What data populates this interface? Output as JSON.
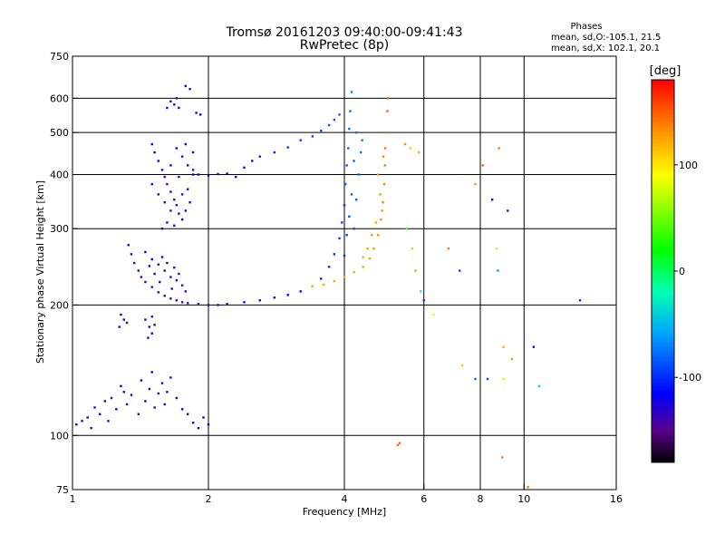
{
  "chart_data": {
    "type": "scatter",
    "title": "Tromsø 20161203 09:40:00-09:41:43",
    "subtitle": "RwPretec (8p)",
    "info": {
      "heading": "Phases",
      "line_o": "mean, sd,O:-105.1, 21.5",
      "line_x": "mean, sd,X: 102.1, 20.1"
    },
    "xlabel": "Frequency [MHz]",
    "ylabel": "Stationary phase Virtual Height [km]",
    "x_scale": "log",
    "y_scale": "log",
    "xlim": [
      1,
      16
    ],
    "ylim": [
      75,
      750
    ],
    "x_ticks": [
      {
        "value": 1,
        "label": "1"
      },
      {
        "value": 2,
        "label": "2"
      },
      {
        "value": 4,
        "label": "4"
      },
      {
        "value": 6,
        "label": "6"
      },
      {
        "value": 8,
        "label": "8"
      },
      {
        "value": 10,
        "label": "10"
      },
      {
        "value": 16,
        "label": "16"
      }
    ],
    "y_ticks": [
      {
        "value": 75,
        "label": "75"
      },
      {
        "value": 100,
        "label": "100"
      },
      {
        "value": 200,
        "label": "200"
      },
      {
        "value": 300,
        "label": "300"
      },
      {
        "value": 400,
        "label": "400"
      },
      {
        "value": 500,
        "label": "500"
      },
      {
        "value": 600,
        "label": "600"
      },
      {
        "value": 750,
        "label": "750"
      }
    ],
    "grid": true,
    "grid_x": [
      2,
      4,
      6,
      8,
      10
    ],
    "grid_y": [
      100,
      200,
      300,
      400,
      500,
      600
    ],
    "colorbar": {
      "label": "[deg]",
      "range": [
        -180,
        180
      ],
      "ticks": [
        {
          "value": 100,
          "label": "100"
        },
        {
          "value": 0,
          "label": "0"
        },
        {
          "value": -100,
          "label": "-100"
        }
      ],
      "stops": [
        {
          "value": -180,
          "color": "#000000"
        },
        {
          "value": -150,
          "color": "#5a008c"
        },
        {
          "value": -115,
          "color": "#0000ff"
        },
        {
          "value": -60,
          "color": "#00a0ff"
        },
        {
          "value": -20,
          "color": "#00ffb4"
        },
        {
          "value": 20,
          "color": "#00ff00"
        },
        {
          "value": 90,
          "color": "#ffff00"
        },
        {
          "value": 130,
          "color": "#ff9600"
        },
        {
          "value": 180,
          "color": "#ff0000"
        }
      ]
    },
    "series": [
      {
        "points": [
          [
            1.02,
            106
          ],
          [
            1.05,
            108
          ],
          [
            1.08,
            110
          ],
          [
            1.1,
            104
          ],
          [
            1.12,
            116
          ],
          [
            1.15,
            112
          ],
          [
            1.18,
            120
          ],
          [
            1.2,
            108
          ],
          [
            1.22,
            122
          ],
          [
            1.25,
            115
          ],
          [
            1.28,
            130
          ],
          [
            1.3,
            126
          ],
          [
            1.32,
            118
          ],
          [
            1.35,
            124
          ],
          [
            1.4,
            112
          ],
          [
            1.42,
            134
          ],
          [
            1.45,
            120
          ],
          [
            1.48,
            128
          ],
          [
            1.5,
            140
          ],
          [
            1.52,
            116
          ],
          [
            1.55,
            125
          ],
          [
            1.58,
            132
          ],
          [
            1.6,
            118
          ],
          [
            1.62,
            126
          ],
          [
            1.65,
            136
          ],
          [
            1.7,
            122
          ],
          [
            1.75,
            115
          ],
          [
            1.8,
            112
          ],
          [
            1.85,
            107
          ],
          [
            1.9,
            104
          ],
          [
            1.95,
            110
          ],
          [
            2.0,
            106
          ]
        ],
        "phases": [
          -120,
          -125,
          -130,
          -140,
          -110,
          -125,
          -130,
          -135,
          -145,
          -115,
          -120,
          -128,
          -140,
          -135,
          -150,
          -125,
          -118,
          -132,
          -126,
          -138,
          -142,
          -120,
          -128,
          -134,
          -116,
          -130,
          -124,
          -138,
          -122,
          -126,
          -132,
          -120
        ]
      },
      {
        "points": [
          [
            1.28,
            190
          ],
          [
            1.3,
            185
          ],
          [
            1.27,
            178
          ],
          [
            1.32,
            182
          ],
          [
            1.45,
            185
          ],
          [
            1.48,
            178
          ],
          [
            1.5,
            172
          ],
          [
            1.47,
            168
          ],
          [
            1.52,
            180
          ],
          [
            1.5,
            188
          ]
        ],
        "phases": [
          -130,
          -125,
          -135,
          -140,
          -130,
          -138,
          -125,
          -132,
          -128,
          -136
        ]
      },
      {
        "points": [
          [
            1.33,
            275
          ],
          [
            1.35,
            262
          ],
          [
            1.37,
            250
          ],
          [
            1.4,
            240
          ],
          [
            1.42,
            232
          ],
          [
            1.45,
            226
          ],
          [
            1.5,
            220
          ],
          [
            1.55,
            214
          ],
          [
            1.6,
            210
          ],
          [
            1.65,
            207
          ],
          [
            1.7,
            205
          ],
          [
            1.75,
            203
          ],
          [
            1.8,
            202
          ],
          [
            1.9,
            201
          ],
          [
            2.0,
            200
          ],
          [
            2.1,
            200
          ],
          [
            2.2,
            201
          ],
          [
            2.4,
            203
          ],
          [
            2.6,
            205
          ],
          [
            2.8,
            208
          ],
          [
            3.0,
            211
          ],
          [
            3.2,
            215
          ],
          [
            3.4,
            221
          ],
          [
            3.55,
            230
          ],
          [
            3.7,
            245
          ],
          [
            3.8,
            262
          ],
          [
            3.9,
            285
          ],
          [
            3.95,
            310
          ],
          [
            4.0,
            340
          ]
        ],
        "phases": [
          -128,
          -130,
          -132,
          -135,
          -138,
          -140,
          -142,
          -145,
          -146,
          -147,
          -148,
          -150,
          -148,
          -145,
          -142,
          -138,
          -135,
          -130,
          -126,
          -122,
          -118,
          -112,
          -108,
          -104,
          -100,
          -98,
          -95,
          -92,
          -88
        ]
      },
      {
        "points": [
          [
            1.45,
            265
          ],
          [
            1.5,
            255
          ],
          [
            1.55,
            248
          ],
          [
            1.6,
            240
          ],
          [
            1.65,
            232
          ],
          [
            1.7,
            228
          ],
          [
            1.75,
            222
          ],
          [
            1.58,
            258
          ],
          [
            1.62,
            250
          ],
          [
            1.68,
            244
          ],
          [
            1.72,
            236
          ],
          [
            1.52,
            236
          ],
          [
            1.48,
            246
          ],
          [
            1.56,
            226
          ],
          [
            1.66,
            218
          ],
          [
            1.78,
            215
          ]
        ],
        "phases": [
          -120,
          -125,
          -130,
          -128,
          -135,
          -138,
          -132,
          -126,
          -130,
          -134,
          -140,
          -124,
          -128,
          -136,
          -138,
          -132
        ]
      },
      {
        "points": [
          [
            1.5,
            470
          ],
          [
            1.52,
            450
          ],
          [
            1.55,
            430
          ],
          [
            1.58,
            410
          ],
          [
            1.6,
            395
          ],
          [
            1.62,
            380
          ],
          [
            1.65,
            365
          ],
          [
            1.68,
            350
          ],
          [
            1.7,
            340
          ],
          [
            1.72,
            325
          ],
          [
            1.75,
            315
          ],
          [
            1.78,
            330
          ],
          [
            1.5,
            380
          ],
          [
            1.55,
            360
          ],
          [
            1.6,
            345
          ],
          [
            1.65,
            330
          ],
          [
            1.7,
            460
          ],
          [
            1.75,
            440
          ],
          [
            1.8,
            420
          ],
          [
            1.85,
            400
          ],
          [
            1.75,
            360
          ],
          [
            1.82,
            345
          ],
          [
            1.62,
            310
          ],
          [
            1.68,
            305
          ],
          [
            1.58,
            300
          ],
          [
            1.8,
            370
          ],
          [
            1.72,
            395
          ],
          [
            1.65,
            420
          ],
          [
            1.78,
            470
          ],
          [
            1.85,
            450
          ]
        ],
        "phases": [
          -125,
          -130,
          -135,
          -128,
          -132,
          -138,
          -140,
          -142,
          -136,
          -130,
          -126,
          -134,
          -128,
          -132,
          -136,
          -140,
          -124,
          -128,
          -132,
          -126,
          -138,
          -130,
          -142,
          -136,
          -140,
          -128,
          -134,
          -130,
          -126,
          -132
        ]
      },
      {
        "points": [
          [
            1.62,
            570
          ],
          [
            1.65,
            590
          ],
          [
            1.68,
            580
          ],
          [
            1.7,
            600
          ],
          [
            1.72,
            570
          ],
          [
            1.78,
            640
          ],
          [
            1.82,
            630
          ],
          [
            1.88,
            555
          ],
          [
            1.92,
            550
          ]
        ],
        "phases": [
          -128,
          -132,
          -136,
          -130,
          -126,
          -134,
          -138,
          -122,
          -118
        ]
      },
      {
        "points": [
          [
            1.85,
            410
          ],
          [
            1.9,
            400
          ],
          [
            2.0,
            398
          ],
          [
            2.1,
            401
          ],
          [
            2.2,
            402
          ],
          [
            2.3,
            395
          ],
          [
            2.4,
            415
          ],
          [
            2.5,
            430
          ],
          [
            2.6,
            440
          ],
          [
            2.8,
            450
          ],
          [
            3.0,
            462
          ],
          [
            3.2,
            480
          ],
          [
            3.4,
            490
          ],
          [
            3.55,
            505
          ],
          [
            3.7,
            520
          ],
          [
            3.8,
            535
          ],
          [
            3.9,
            550
          ]
        ],
        "phases": [
          -130,
          -126,
          -122,
          -120,
          -118,
          -115,
          -112,
          -110,
          -108,
          -105,
          -100,
          -95,
          -92,
          -90,
          -88,
          -85,
          -80
        ]
      },
      {
        "points": [
          [
            4.0,
            340
          ],
          [
            4.02,
            380
          ],
          [
            4.05,
            420
          ],
          [
            4.08,
            460
          ],
          [
            4.1,
            510
          ],
          [
            4.12,
            560
          ],
          [
            4.15,
            620
          ],
          [
            4.2,
            300
          ],
          [
            4.25,
            350
          ],
          [
            4.3,
            400
          ],
          [
            4.35,
            450
          ],
          [
            4.38,
            480
          ],
          [
            4.0,
            260
          ],
          [
            4.05,
            290
          ],
          [
            4.1,
            320
          ],
          [
            4.15,
            360
          ],
          [
            4.2,
            430
          ],
          [
            4.25,
            500
          ]
        ],
        "phases": [
          -95,
          -90,
          -85,
          -80,
          -78,
          -75,
          -72,
          -88,
          -84,
          -80,
          -76,
          -74,
          -98,
          -92,
          -88,
          -84,
          -80,
          -76
        ]
      },
      {
        "points": [
          [
            3.4,
            221
          ],
          [
            3.6,
            223
          ],
          [
            3.8,
            227
          ],
          [
            4.0,
            232
          ],
          [
            4.2,
            238
          ],
          [
            4.4,
            245
          ],
          [
            4.55,
            256
          ],
          [
            4.65,
            270
          ],
          [
            4.75,
            290
          ],
          [
            4.82,
            315
          ],
          [
            4.87,
            345
          ],
          [
            4.9,
            380
          ],
          [
            4.92,
            420
          ],
          [
            4.93,
            460
          ],
          [
            4.95,
            500
          ],
          [
            4.75,
            400
          ],
          [
            4.8,
            360
          ],
          [
            4.85,
            330
          ],
          [
            4.7,
            310
          ],
          [
            4.6,
            290
          ],
          [
            4.5,
            270
          ],
          [
            4.4,
            258
          ],
          [
            4.98,
            560
          ],
          [
            5.0,
            600
          ],
          [
            4.88,
            440
          ]
        ],
        "phases": [
          115,
          118,
          120,
          122,
          124,
          126,
          128,
          130,
          132,
          134,
          135,
          136,
          138,
          140,
          142,
          128,
          130,
          132,
          126,
          124,
          122,
          120,
          144,
          146,
          136
        ]
      },
      {
        "points": [
          [
            5.45,
            470
          ],
          [
            5.6,
            460
          ],
          [
            5.85,
            450
          ],
          [
            5.5,
            300
          ],
          [
            5.65,
            270
          ],
          [
            5.75,
            240
          ],
          [
            5.9,
            215
          ],
          [
            6.0,
            205
          ],
          [
            6.3,
            190
          ],
          [
            6.8,
            270
          ],
          [
            7.2,
            240
          ],
          [
            7.8,
            380
          ],
          [
            8.1,
            420
          ],
          [
            8.5,
            350
          ],
          [
            8.8,
            460
          ],
          [
            8.7,
            270
          ],
          [
            8.75,
            240
          ],
          [
            9.2,
            330
          ],
          [
            9.0,
            160
          ],
          [
            9.4,
            150
          ],
          [
            5.25,
            95
          ],
          [
            5.3,
            96
          ],
          [
            7.3,
            145
          ],
          [
            7.8,
            135
          ],
          [
            8.3,
            135
          ],
          [
            9.0,
            135
          ],
          [
            10.5,
            160
          ],
          [
            10.8,
            130
          ],
          [
            13.3,
            205
          ],
          [
            10.2,
            76
          ],
          [
            8.95,
            89
          ]
        ],
        "phases": [
          130,
          110,
          120,
          40,
          60,
          130,
          -20,
          -100,
          80,
          140,
          -90,
          130,
          150,
          -110,
          140,
          100,
          -60,
          -100,
          120,
          130,
          140,
          150,
          110,
          -80,
          -90,
          100,
          -110,
          -40,
          -100,
          140,
          140
        ]
      }
    ]
  }
}
